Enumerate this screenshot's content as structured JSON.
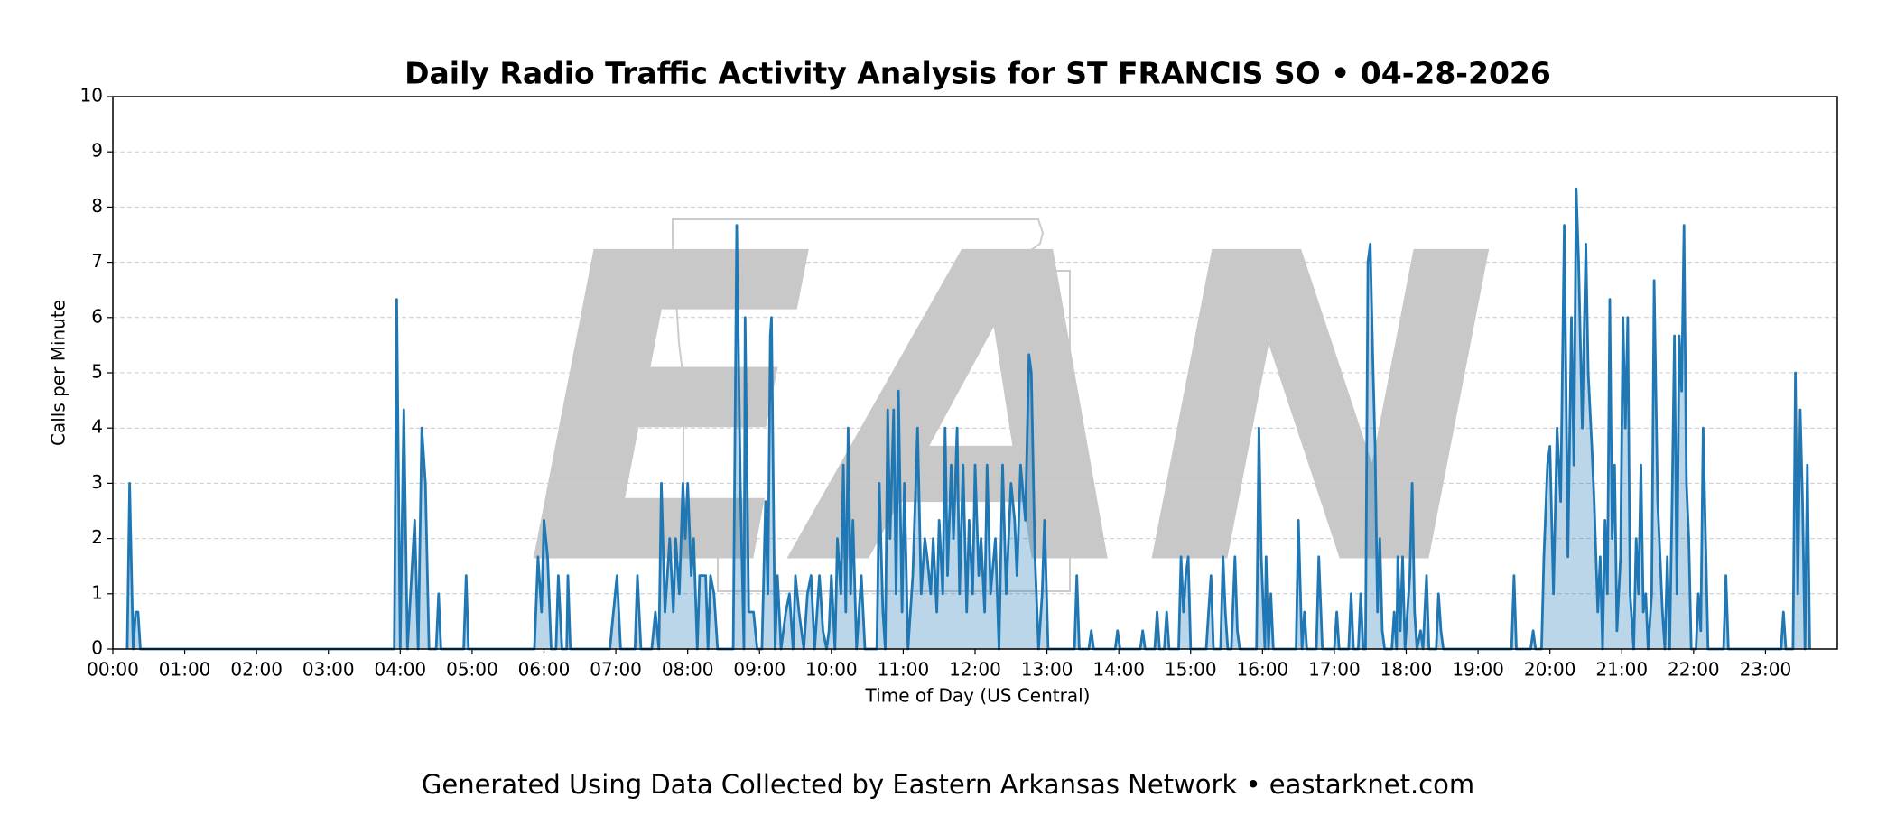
{
  "chart_data": {
    "type": "area",
    "title": "Daily Radio Traffic Activity Analysis for ST FRANCIS SO • 04-28-2026",
    "xlabel": "Time of Day (US Central)",
    "ylabel": "Calls per Minute",
    "footer": "Generated Using Data Collected by Eastern Arkansas Network • eastarknet.com",
    "watermark": "EAN",
    "xlim": [
      0,
      1440
    ],
    "ylim": [
      0,
      10
    ],
    "yticks": [
      0,
      1,
      2,
      3,
      4,
      5,
      6,
      7,
      8,
      9,
      10
    ],
    "xticks": [
      {
        "value": 0,
        "label": "00:00"
      },
      {
        "value": 60,
        "label": "01:00"
      },
      {
        "value": 120,
        "label": "02:00"
      },
      {
        "value": 180,
        "label": "03:00"
      },
      {
        "value": 240,
        "label": "04:00"
      },
      {
        "value": 300,
        "label": "05:00"
      },
      {
        "value": 360,
        "label": "06:00"
      },
      {
        "value": 420,
        "label": "07:00"
      },
      {
        "value": 480,
        "label": "08:00"
      },
      {
        "value": 540,
        "label": "09:00"
      },
      {
        "value": 600,
        "label": "10:00"
      },
      {
        "value": 660,
        "label": "11:00"
      },
      {
        "value": 720,
        "label": "12:00"
      },
      {
        "value": 780,
        "label": "13:00"
      },
      {
        "value": 840,
        "label": "14:00"
      },
      {
        "value": 900,
        "label": "15:00"
      },
      {
        "value": 960,
        "label": "16:00"
      },
      {
        "value": 1020,
        "label": "17:00"
      },
      {
        "value": 1080,
        "label": "18:00"
      },
      {
        "value": 1140,
        "label": "19:00"
      },
      {
        "value": 1200,
        "label": "20:00"
      },
      {
        "value": 1260,
        "label": "21:00"
      },
      {
        "value": 1320,
        "label": "22:00"
      },
      {
        "value": 1380,
        "label": "23:00"
      }
    ],
    "grid": true,
    "series": [
      {
        "color": "#1f77b4",
        "x": [
          12,
          14,
          17,
          19,
          21,
          23,
          235,
          237,
          240,
          243,
          246,
          252,
          255,
          258,
          261,
          264,
          270,
          272,
          274,
          293,
          295,
          297,
          352,
          355,
          358,
          360,
          363,
          366,
          370,
          372,
          375,
          379,
          380,
          382,
          415,
          418,
          421,
          424,
          436,
          438,
          441,
          450,
          453,
          456,
          458,
          461,
          465,
          468,
          470,
          473,
          476,
          478,
          480,
          483,
          485,
          488,
          490,
          495,
          497,
          499,
          502,
          505,
          518,
          521,
          524,
          527,
          528,
          531,
          535,
          538,
          542,
          545,
          547,
          549,
          550,
          553,
          555,
          558,
          562,
          565,
          568,
          570,
          573,
          577,
          580,
          583,
          586,
          590,
          593,
          596,
          598,
          600,
          603,
          605,
          608,
          610,
          612,
          614,
          616,
          618,
          621,
          625,
          628,
          638,
          640,
          643,
          645,
          647,
          649,
          652,
          654,
          656,
          659,
          661,
          664,
          668,
          670,
          672,
          675,
          678,
          680,
          683,
          685,
          688,
          690,
          693,
          695,
          697,
          700,
          702,
          705,
          707,
          710,
          713,
          715,
          718,
          720,
          723,
          725,
          728,
          730,
          733,
          737,
          740,
          743,
          746,
          750,
          753,
          755,
          758,
          762,
          765,
          767,
          770,
          773,
          776,
          778,
          781,
          803,
          805,
          807,
          815,
          817,
          819,
          837,
          839,
          841,
          858,
          860,
          862,
          870,
          872,
          874,
          878,
          880,
          882,
          890,
          892,
          894,
          896,
          898,
          900,
          913,
          915,
          917,
          919,
          925,
          927,
          929,
          931,
          934,
          937,
          939,
          941,
          955,
          957,
          959,
          962,
          963,
          965,
          967,
          969,
          988,
          990,
          993,
          995,
          997,
          1005,
          1007,
          1010,
          1020,
          1022,
          1024,
          1032,
          1034,
          1036,
          1040,
          1042,
          1044,
          1046,
          1048,
          1050,
          1052,
          1054,
          1056,
          1058,
          1060,
          1062,
          1068,
          1070,
          1072,
          1073,
          1075,
          1077,
          1079,
          1083,
          1085,
          1087,
          1089,
          1092,
          1094,
          1097,
          1099,
          1105,
          1107,
          1109,
          1111,
          1168,
          1170,
          1172,
          1184,
          1186,
          1188,
          1193,
          1195,
          1198,
          1200,
          1203,
          1206,
          1209,
          1212,
          1215,
          1218,
          1220,
          1222,
          1224,
          1227,
          1230,
          1232,
          1235,
          1237,
          1240,
          1242,
          1244,
          1246,
          1248,
          1250,
          1252,
          1254,
          1256,
          1259,
          1261,
          1263,
          1265,
          1267,
          1270,
          1272,
          1274,
          1276,
          1278,
          1280,
          1282,
          1285,
          1287,
          1290,
          1292,
          1294,
          1296,
          1298,
          1300,
          1302,
          1304,
          1306,
          1308,
          1310,
          1312,
          1314,
          1316,
          1318,
          1322,
          1324,
          1326,
          1328,
          1330,
          1332,
          1345,
          1347,
          1349,
          1393,
          1395,
          1397,
          1403,
          1405,
          1407,
          1409,
          1411,
          1413,
          1415,
          1417
        ],
        "values": [
          0,
          3,
          0,
          0.67,
          0.67,
          0,
          0,
          6.33,
          0,
          4.33,
          0,
          2.33,
          0,
          4,
          3,
          0,
          0,
          1,
          0,
          0,
          1.33,
          0,
          0,
          1.67,
          0.67,
          2.33,
          1.67,
          0,
          0,
          1.33,
          0,
          0,
          1.33,
          0,
          0,
          0.67,
          1.33,
          0,
          0,
          1.33,
          0,
          0,
          0.67,
          0,
          3,
          0.67,
          2,
          0.67,
          2,
          1,
          3,
          2,
          3,
          1.33,
          2,
          0,
          1.33,
          1.33,
          0,
          1.33,
          1,
          0,
          0,
          7.67,
          3,
          0,
          6,
          0.67,
          0.67,
          0,
          0,
          2.67,
          1,
          5.67,
          6,
          0,
          1.33,
          0,
          0.67,
          1,
          0,
          1.33,
          0.67,
          0,
          1,
          1.33,
          0,
          1.33,
          0.33,
          0,
          0.33,
          1.33,
          0,
          2,
          1,
          3.33,
          0.67,
          4,
          1,
          2.33,
          0,
          1.33,
          0,
          0,
          3,
          0.67,
          0,
          4.33,
          2,
          4.33,
          1,
          4.67,
          0.67,
          3,
          0,
          1.33,
          2.67,
          4,
          1,
          2,
          1.67,
          1,
          2,
          0.67,
          2.33,
          1,
          4,
          1.33,
          3.33,
          2,
          4,
          1,
          3.33,
          0.67,
          2.33,
          1,
          3.33,
          1.33,
          2,
          0.67,
          3.33,
          1,
          2,
          0,
          3.33,
          1,
          3,
          2.33,
          1.33,
          3.33,
          2.33,
          5.33,
          5,
          1.67,
          0,
          1,
          2.33,
          0,
          0,
          1.33,
          0,
          0,
          0.33,
          0,
          0,
          0.33,
          0,
          0,
          0.33,
          0,
          0,
          0.67,
          0,
          0,
          0.67,
          0,
          0,
          1.67,
          0.67,
          1.33,
          1.67,
          0,
          0,
          0.67,
          1.33,
          0,
          0,
          1.67,
          0.67,
          0,
          0,
          1.67,
          0.33,
          0,
          0,
          4,
          1.67,
          0,
          1.67,
          0,
          1,
          0,
          0,
          2.33,
          0,
          0.67,
          0,
          0,
          1.67,
          0,
          0,
          0.67,
          0,
          0,
          1,
          0,
          0,
          1,
          0,
          0,
          7,
          7.33,
          5.33,
          3.67,
          0.67,
          2,
          0.33,
          0,
          0,
          0.67,
          0,
          1.67,
          0.33,
          1.67,
          0,
          1.33,
          3,
          0.67,
          0,
          0.33,
          0,
          1.33,
          0,
          0,
          1,
          0.33,
          0,
          0,
          1.33,
          0,
          0,
          0.33,
          0,
          0,
          1.67,
          3.33,
          3.67,
          1,
          4,
          2.67,
          7.67,
          1.67,
          6,
          3.33,
          8.33,
          7,
          4,
          7.33,
          5,
          3.67,
          2.67,
          0.67,
          1.67,
          0,
          2.33,
          1,
          6.33,
          2,
          3.33,
          0.33,
          1.67,
          6,
          4,
          6,
          1,
          0,
          2,
          1,
          3.33,
          0.67,
          1,
          0,
          1,
          6.67,
          2.67,
          1.67,
          0.67,
          0,
          1.67,
          0,
          2.67,
          5.67,
          1,
          5.67,
          4.67,
          7.67,
          3,
          2,
          0,
          0,
          1,
          0.33,
          4,
          2,
          0,
          0,
          1.33,
          0,
          0,
          0.67,
          0,
          0,
          5,
          1,
          4.33,
          2.67,
          0,
          3.33,
          0
        ]
      }
    ]
  }
}
